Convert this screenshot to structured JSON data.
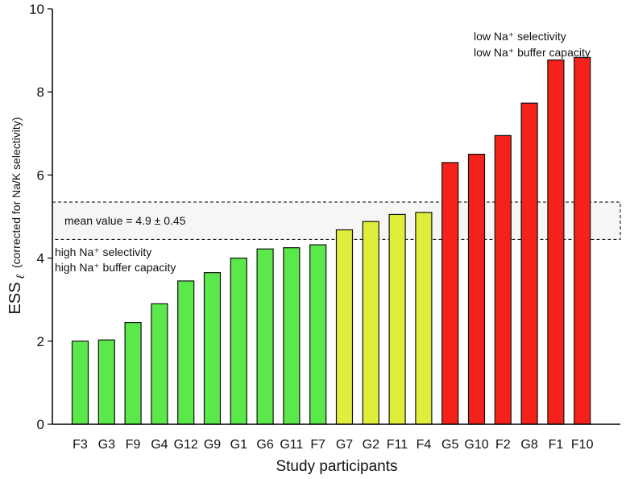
{
  "chart_data": {
    "type": "bar",
    "categories": [
      "F3",
      "G3",
      "F9",
      "G4",
      "G12",
      "G9",
      "G1",
      "G6",
      "G11",
      "F7",
      "G7",
      "G2",
      "F11",
      "F4",
      "G5",
      "G10",
      "F2",
      "G8",
      "F1",
      "F10"
    ],
    "values": [
      2.0,
      2.03,
      2.45,
      2.9,
      3.45,
      3.65,
      4.0,
      4.22,
      4.25,
      4.32,
      4.68,
      4.88,
      5.05,
      5.1,
      6.3,
      6.5,
      6.95,
      7.73,
      8.77,
      8.83
    ],
    "bar_colors": [
      "#5be84a",
      "#5be84a",
      "#5be84a",
      "#5be84a",
      "#5be84a",
      "#5be84a",
      "#5be84a",
      "#5be84a",
      "#5be84a",
      "#5be84a",
      "#e0ee3b",
      "#e0ee3b",
      "#e0ee3b",
      "#e0ee3b",
      "#f5211b",
      "#f5211b",
      "#f5211b",
      "#f5211b",
      "#f5211b",
      "#f5211b"
    ],
    "ylim": [
      0,
      10
    ],
    "yticks": [
      0,
      2,
      4,
      6,
      8,
      10
    ],
    "xlabel": "Study participants",
    "ylabel": "ESS",
    "ylabel_subscript": "ℓ",
    "ylabel_note": "(corrected for Na/K selectivity)",
    "mean_band": {
      "low": 4.45,
      "high": 5.35,
      "label": "mean value = 4.9 ± 0.45"
    },
    "annotations": {
      "high": [
        "high Na⁺ selectivity",
        "high Na⁺ buffer capacity"
      ],
      "low": [
        "low Na⁺ selectivity",
        "low Na⁺ buffer capacity"
      ]
    },
    "grid": false,
    "legend": "none"
  }
}
